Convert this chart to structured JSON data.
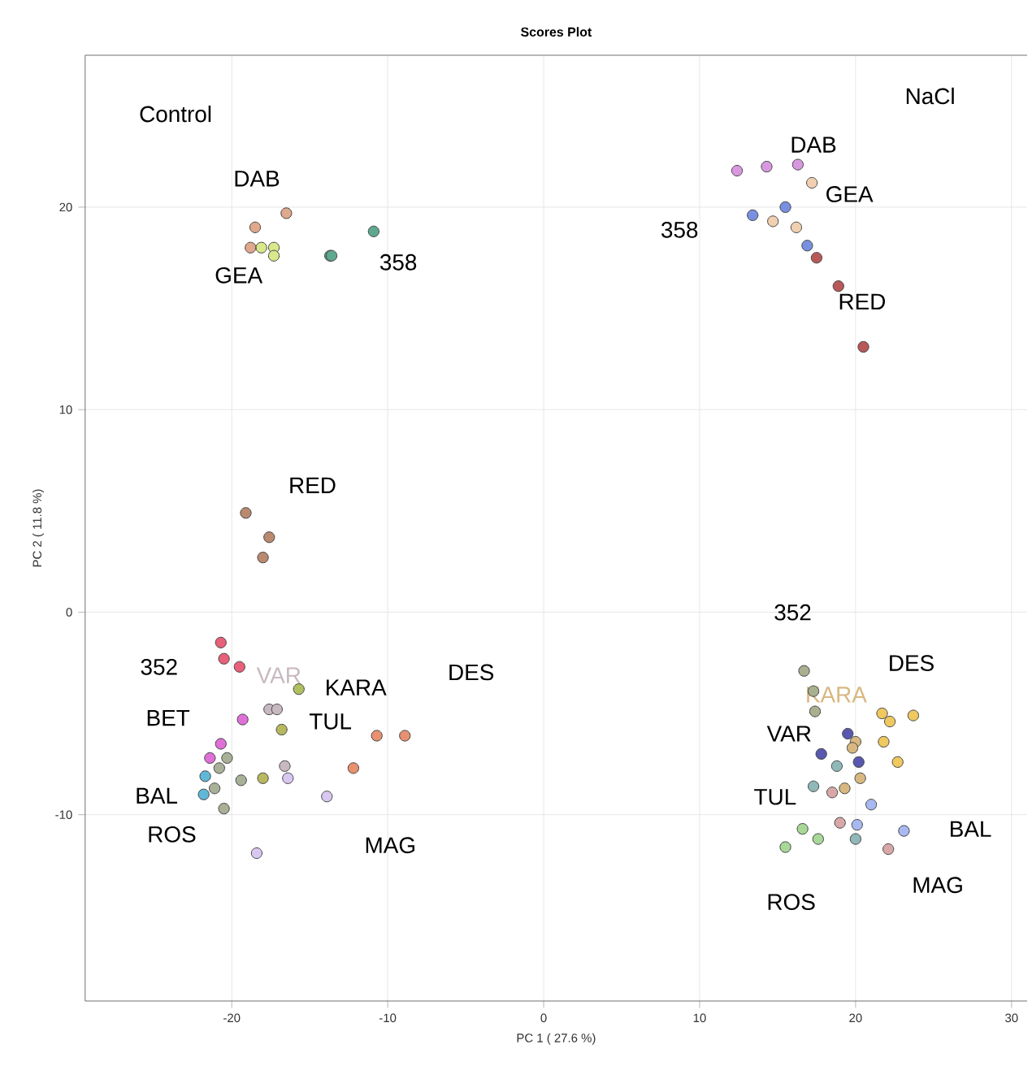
{
  "chart_data": {
    "type": "scatter",
    "title": "Scores Plot",
    "xlabel": "PC 1 ( 27.6 %)",
    "ylabel": "PC 2 ( 11.8 %)",
    "xlim": [
      -29.4,
      31
    ],
    "ylim": [
      -19.2,
      27.5
    ],
    "xticks": [
      -20,
      -10,
      0,
      10,
      20,
      30
    ],
    "yticks": [
      -10,
      0,
      10,
      20
    ],
    "grid": true,
    "marker": "circle",
    "series": [
      {
        "name": "DAB",
        "color": "#e0a88c",
        "x": [
          -18.5,
          -16.5,
          -18.8
        ],
        "values": [
          19.0,
          19.7,
          18.0
        ]
      },
      {
        "name": "GEA",
        "color": "#d8e88a",
        "x": [
          -18.1,
          -17.3,
          -17.3
        ],
        "values": [
          18.0,
          18.0,
          17.6
        ]
      },
      {
        "name": "358",
        "color": "#5fa890",
        "x": [
          -13.7,
          -13.6,
          -10.9
        ],
        "values": [
          17.6,
          17.6,
          18.8
        ]
      },
      {
        "name": "RED",
        "color": "#b98a70",
        "x": [
          -19.1,
          -17.6,
          -18.0
        ],
        "values": [
          4.9,
          3.7,
          2.7
        ]
      },
      {
        "name": "352",
        "color": "#e8607a",
        "x": [
          -20.7,
          -20.5,
          -19.5
        ],
        "values": [
          -1.5,
          -2.3,
          -2.7
        ]
      },
      {
        "name": "BET",
        "color": "#e070d8",
        "x": [
          -19.3,
          -20.7,
          -21.4
        ],
        "values": [
          -5.3,
          -6.5,
          -7.2
        ]
      },
      {
        "name": "BAL",
        "color": "#60b8d8",
        "x": [
          -21.7,
          -21.8
        ],
        "values": [
          -8.1,
          -9.0
        ]
      },
      {
        "name": "ROS",
        "color": "#a8b098",
        "x": [
          -20.3,
          -20.8,
          -21.1,
          -20.5,
          -19.4
        ],
        "values": [
          -7.2,
          -7.7,
          -8.7,
          -9.7,
          -8.3
        ]
      },
      {
        "name": "VAR",
        "color": "#c8b8c0",
        "x": [
          -17.6,
          -17.1,
          -16.6
        ],
        "values": [
          -4.8,
          -4.8,
          -7.6
        ]
      },
      {
        "name": "TUL",
        "color": "#b8b860",
        "x": [
          -16.8,
          -18.0
        ],
        "values": [
          -5.8,
          -8.2
        ]
      },
      {
        "name": "KARA",
        "color": "#b0c060",
        "x": [
          -15.7
        ],
        "values": [
          -3.8
        ]
      },
      {
        "name": "DES",
        "color": "#e89070",
        "x": [
          -10.7,
          -8.9,
          -12.2
        ],
        "values": [
          -6.1,
          -6.1,
          -7.7
        ]
      },
      {
        "name": "MAG",
        "color": "#d8c8f0",
        "x": [
          -13.9,
          -18.4,
          -16.4
        ],
        "values": [
          -9.1,
          -11.9,
          -8.2
        ]
      },
      {
        "name": "DAB",
        "color": "#d898e0",
        "x": [
          12.4,
          14.3,
          16.3
        ],
        "values": [
          21.8,
          22.0,
          22.1
        ]
      },
      {
        "name": "GEA",
        "color": "#f0d0b0",
        "x": [
          17.2,
          14.7,
          16.2
        ],
        "values": [
          21.2,
          19.3,
          19.0
        ]
      },
      {
        "name": "358",
        "color": "#7890e0",
        "x": [
          13.4,
          15.5,
          16.9
        ],
        "values": [
          19.6,
          20.0,
          18.1
        ]
      },
      {
        "name": "RED",
        "color": "#b85858",
        "x": [
          17.5,
          18.9,
          20.5
        ],
        "values": [
          17.5,
          16.1,
          13.1
        ]
      },
      {
        "name": "352",
        "color": "#a8b090",
        "x": [
          16.7,
          17.3,
          17.4
        ],
        "values": [
          -2.9,
          -3.9,
          -4.9
        ]
      },
      {
        "name": "DES",
        "color": "#f0c860",
        "x": [
          21.7,
          22.2,
          23.7,
          21.8,
          22.7
        ],
        "values": [
          -5.0,
          -5.4,
          -5.1,
          -6.4,
          -7.4
        ]
      },
      {
        "name": "VAR",
        "color": "#5858b0",
        "x": [
          19.5,
          17.8,
          20.2
        ],
        "values": [
          -6.0,
          -7.0,
          -7.4
        ]
      },
      {
        "name": "KARA",
        "color": "#d8b880",
        "x": [
          20.0,
          19.8,
          20.3,
          19.3
        ],
        "values": [
          -6.4,
          -6.7,
          -8.2,
          -8.7
        ]
      },
      {
        "name": "TUL",
        "color": "#90b8b8",
        "x": [
          18.8,
          17.3,
          20.0
        ],
        "values": [
          -7.6,
          -8.6,
          -11.2
        ]
      },
      {
        "name": "MAG",
        "color": "#d8a8a8",
        "x": [
          18.5,
          19.0,
          22.1
        ],
        "values": [
          -8.9,
          -10.4,
          -11.7
        ]
      },
      {
        "name": "BAL",
        "color": "#a8b8f0",
        "x": [
          21.0,
          20.1,
          23.1
        ],
        "values": [
          -9.5,
          -10.5,
          -10.8
        ]
      },
      {
        "name": "ROS",
        "color": "#a8d898",
        "x": [
          16.6,
          17.6,
          15.5
        ],
        "values": [
          -10.7,
          -11.2,
          -11.6
        ]
      }
    ],
    "annotations": [
      "Control",
      "NaCl"
    ]
  }
}
